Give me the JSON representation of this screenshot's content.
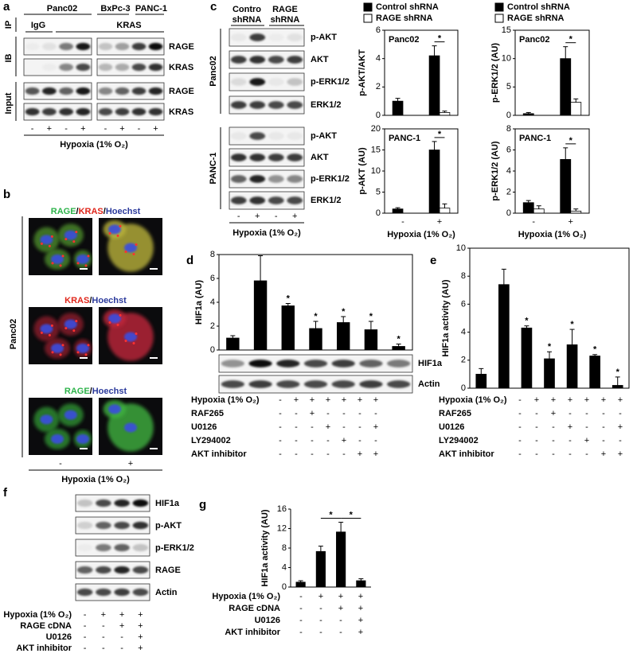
{
  "panels": {
    "a": {
      "letter": "a",
      "cell_lines": [
        "Panc02",
        "BxPc-3",
        "PANC-1"
      ],
      "ip": "IP",
      "ip_antibodies": [
        "IgG",
        "KRAS"
      ],
      "sections": [
        "IB",
        "Input"
      ],
      "blots": [
        "RAGE",
        "KRAS",
        "RAGE",
        "KRAS"
      ],
      "lanes": [
        "-",
        "+",
        "-",
        "+",
        "-",
        "+",
        "-",
        "+"
      ],
      "treatment": "Hypoxia (1% O₂)"
    },
    "b": {
      "letter": "b",
      "stains": [
        [
          {
            "text": "RAGE",
            "color": "#2db34a"
          },
          {
            "text": "/",
            "color": "#000000"
          },
          {
            "text": "KRAS",
            "color": "#e0261b"
          },
          {
            "text": "/",
            "color": "#000000"
          },
          {
            "text": "Hoechst",
            "color": "#2b3a9c"
          }
        ],
        [
          {
            "text": "KRAS",
            "color": "#e0261b"
          },
          {
            "text": "/",
            "color": "#000000"
          },
          {
            "text": "Hoechst",
            "color": "#2b3a9c"
          }
        ],
        [
          {
            "text": "RAGE",
            "color": "#2db34a"
          },
          {
            "text": "/",
            "color": "#000000"
          },
          {
            "text": "Hoechst",
            "color": "#2b3a9c"
          }
        ]
      ],
      "cell_line": "Panc02",
      "lanes": [
        "-",
        "+"
      ],
      "treatment": "Hypoxia (1% O₂)"
    },
    "c": {
      "letter": "c",
      "groups": [
        [
          "Contro",
          "shRNA"
        ],
        [
          "RAGE",
          "shRNA"
        ]
      ],
      "cell_lines": [
        "Panc02",
        "PANC-1"
      ],
      "blots": [
        [
          "p-AKT",
          "AKT",
          "p-ERK1/2",
          "ERK1/2"
        ],
        [
          "p-AKT",
          "AKT",
          "p-ERK1/2",
          "ERK1/2"
        ]
      ],
      "lanes": [
        "-",
        "+",
        "-",
        "+"
      ],
      "treatment": "Hypoxia (1% O₂)"
    },
    "d": {
      "letter": "d",
      "blots": [
        "HIF1a",
        "Actin"
      ]
    },
    "e": {
      "letter": "e"
    },
    "f": {
      "letter": "f",
      "blots": [
        "HIF1a",
        "p-AKT",
        "p-ERK1/2",
        "RAGE",
        "Actin"
      ],
      "conditions": [
        {
          "label": "Hypoxia (1% O₂)",
          "signs": [
            "-",
            "+",
            "+",
            "+"
          ]
        },
        {
          "label": "RAGE cDNA",
          "signs": [
            "-",
            "-",
            "+",
            "+"
          ]
        },
        {
          "label": "U0126",
          "signs": [
            "-",
            "-",
            "-",
            "+"
          ]
        },
        {
          "label": "AKT inhibitor",
          "signs": [
            "-",
            "-",
            "-",
            "+"
          ]
        }
      ]
    },
    "g": {
      "letter": "g"
    }
  },
  "chart_data": [
    {
      "type": "bar",
      "title": "Panc02",
      "y_label": "p-AKT/AKT",
      "legend": "top",
      "series": [
        {
          "name": "Control shRNA",
          "color": "#000000",
          "values": [
            1.0,
            4.2
          ],
          "errors": [
            0.2,
            0.7
          ]
        },
        {
          "name": "RAGE shRNA",
          "color": "#ffffff",
          "values": [
            null,
            0.2
          ],
          "errors": [
            null,
            0.1
          ]
        }
      ],
      "significance": [
        null,
        "*"
      ],
      "ylim": [
        0,
        6
      ],
      "yticks": [
        0,
        2,
        4,
        6
      ]
    },
    {
      "type": "bar",
      "title": "Panc02",
      "y_label": "p-ERK1/2 (AU)",
      "legend": "top",
      "series": [
        {
          "name": "Control shRNA",
          "color": "#000000",
          "values": [
            0.3,
            10
          ],
          "errors": [
            0.2,
            2.1
          ]
        },
        {
          "name": "RAGE shRNA",
          "color": "#ffffff",
          "values": [
            null,
            2.3
          ],
          "errors": [
            null,
            0.6
          ]
        }
      ],
      "significance": [
        null,
        "*"
      ],
      "ylim": [
        0,
        15
      ],
      "yticks": [
        0,
        5,
        10,
        15
      ]
    },
    {
      "type": "bar",
      "title": "PANC-1",
      "y_label": "p-AKT (AU)",
      "x_label": "Hypoxia (1% O₂)",
      "categories": [
        "-",
        "+"
      ],
      "series": [
        {
          "name": "Control shRNA",
          "color": "#000000",
          "values": [
            1.0,
            15
          ],
          "errors": [
            0.3,
            2.0
          ]
        },
        {
          "name": "RAGE shRNA",
          "color": "#ffffff",
          "values": [
            null,
            1.2
          ],
          "errors": [
            null,
            1.0
          ]
        }
      ],
      "significance": [
        null,
        "*"
      ],
      "ylim": [
        0,
        20
      ],
      "yticks": [
        0,
        5,
        10,
        15,
        20
      ]
    },
    {
      "type": "bar",
      "title": "PANC-1",
      "y_label": "p-ERK1/2 (AU)",
      "x_label": "Hypoxia (1% O₂)",
      "categories": [
        "-",
        "+"
      ],
      "series": [
        {
          "name": "Control shRNA",
          "color": "#000000",
          "values": [
            1.0,
            5.1
          ],
          "errors": [
            0.2,
            1.1
          ]
        },
        {
          "name": "RAGE shRNA",
          "color": "#ffffff",
          "values": [
            0.4,
            0.2
          ],
          "errors": [
            0.3,
            0.2
          ]
        }
      ],
      "significance": [
        null,
        "*"
      ],
      "ylim": [
        0,
        8
      ],
      "yticks": [
        0,
        2,
        4,
        6,
        8
      ]
    },
    {
      "type": "bar",
      "y_label": "HIF1a (AU)",
      "color": "#000000",
      "values": [
        1.0,
        5.8,
        3.7,
        1.8,
        2.3,
        1.7,
        0.3
      ],
      "errors": [
        0.2,
        2.1,
        0.2,
        0.6,
        0.5,
        0.7,
        0.2
      ],
      "significance": [
        null,
        null,
        "*",
        "*",
        "*",
        "*",
        "*"
      ],
      "ylim": [
        0,
        8
      ],
      "yticks": [
        0,
        2,
        4,
        6,
        8
      ],
      "conditions": [
        {
          "label": "Hypoxia (1% O₂)",
          "signs": [
            "-",
            "+",
            "+",
            "+",
            "+",
            "+",
            "+"
          ]
        },
        {
          "label": "RAF265",
          "signs": [
            "-",
            "-",
            "+",
            "-",
            "-",
            "-",
            "-"
          ]
        },
        {
          "label": "U0126",
          "signs": [
            "-",
            "-",
            "-",
            "+",
            "-",
            "-",
            "+"
          ]
        },
        {
          "label": "LY294002",
          "signs": [
            "-",
            "-",
            "-",
            "-",
            "+",
            "-",
            "-"
          ]
        },
        {
          "label": "AKT inhibitor",
          "signs": [
            "-",
            "-",
            "-",
            "-",
            "-",
            "+",
            "+"
          ]
        }
      ]
    },
    {
      "type": "bar",
      "y_label": "HIF1a activity (AU)",
      "color": "#000000",
      "values": [
        1.0,
        7.4,
        4.3,
        2.1,
        3.1,
        2.3,
        0.2
      ],
      "errors": [
        0.4,
        1.1,
        0.15,
        0.5,
        1.1,
        0.1,
        0.6
      ],
      "significance": [
        null,
        null,
        "*",
        "*",
        "*",
        "*",
        "*"
      ],
      "ylim": [
        0,
        10
      ],
      "yticks": [
        0,
        2,
        4,
        6,
        8,
        10
      ],
      "conditions": [
        {
          "label": "Hypoxia (1% O₂)",
          "signs": [
            "-",
            "+",
            "+",
            "+",
            "+",
            "+",
            "+"
          ]
        },
        {
          "label": "RAF265",
          "signs": [
            "-",
            "-",
            "+",
            "-",
            "-",
            "-",
            "-"
          ]
        },
        {
          "label": "U0126",
          "signs": [
            "-",
            "-",
            "-",
            "+",
            "-",
            "-",
            "+"
          ]
        },
        {
          "label": "LY294002",
          "signs": [
            "-",
            "-",
            "-",
            "-",
            "+",
            "-",
            "-"
          ]
        },
        {
          "label": "AKT inhibitor",
          "signs": [
            "-",
            "-",
            "-",
            "-",
            "-",
            "+",
            "+"
          ]
        }
      ]
    },
    {
      "type": "bar",
      "y_label": "HIF1a activity (AU)",
      "color": "#000000",
      "box": false,
      "values": [
        1.0,
        7.3,
        11.3,
        1.3
      ],
      "errors": [
        0.3,
        1.1,
        2.0,
        0.4
      ],
      "comparisons": [
        null,
        "*",
        "*",
        null
      ],
      "ylim": [
        0,
        16
      ],
      "yticks": [
        0,
        4,
        8,
        12,
        16
      ],
      "conditions": [
        {
          "label": "Hypoxia (1% O₂)",
          "signs": [
            "-",
            "+",
            "+",
            "+"
          ]
        },
        {
          "label": "RAGE cDNA",
          "signs": [
            "-",
            "-",
            "+",
            "+"
          ]
        },
        {
          "label": "U0126",
          "signs": [
            "-",
            "-",
            "-",
            "+"
          ]
        },
        {
          "label": "AKT inhibitor",
          "signs": [
            "-",
            "-",
            "-",
            "+"
          ]
        }
      ]
    }
  ]
}
